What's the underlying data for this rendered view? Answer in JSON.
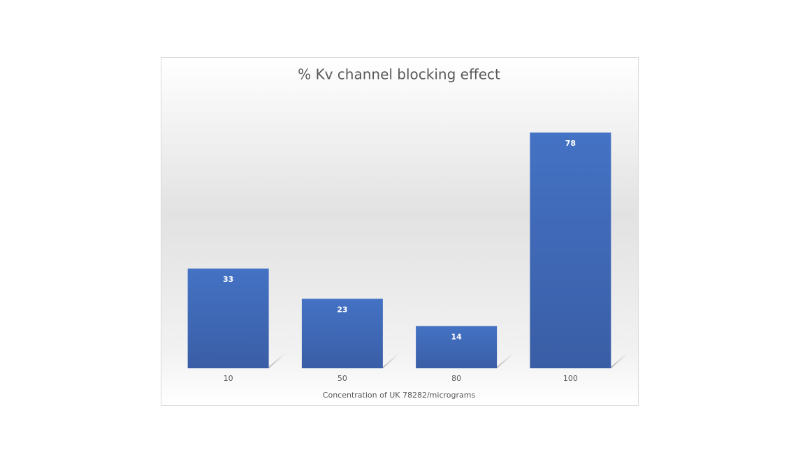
{
  "chart_data": {
    "type": "bar",
    "title": "% Kv channel blocking effect",
    "x_label": "Concentration of UK 78282/micrograms",
    "categories": [
      "10",
      "50",
      "80",
      "100"
    ],
    "values": [
      33,
      23,
      14,
      78
    ],
    "color": "#4472c4"
  }
}
